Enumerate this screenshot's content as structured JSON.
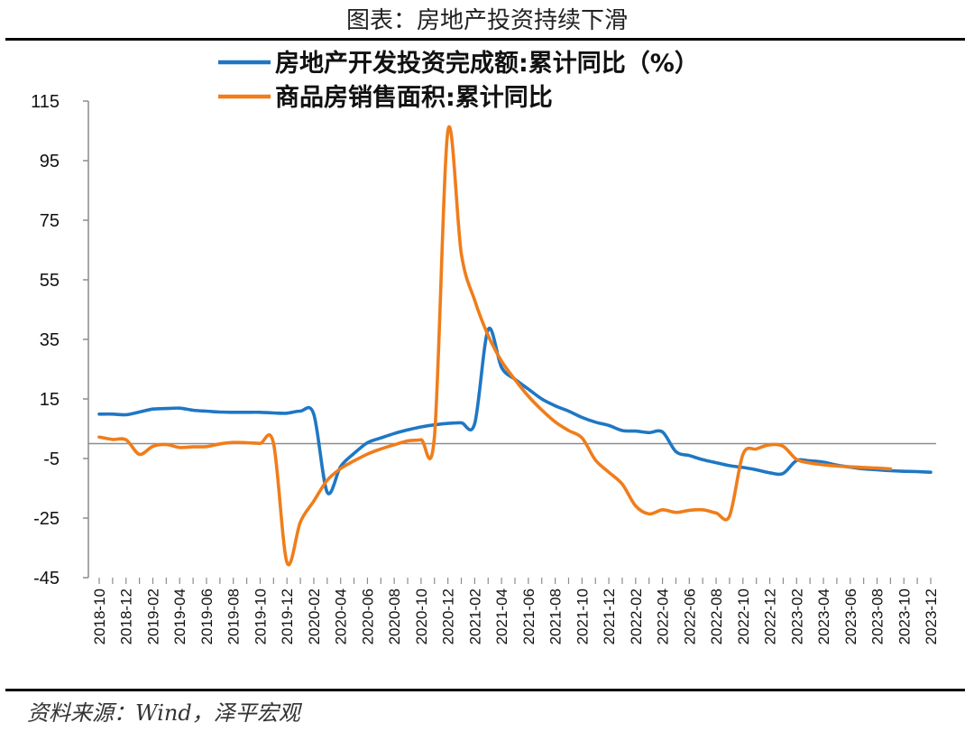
{
  "title": "图表：房地产投资持续下滑",
  "source": "资料来源：Wind，泽平宏观",
  "chart_data": {
    "type": "line",
    "ylim": [
      -45,
      115
    ],
    "yticks": [
      115,
      95,
      75,
      55,
      35,
      15,
      -5,
      -25,
      -45
    ],
    "xtick_labels": [
      "2018-10",
      "2018-12",
      "2019-02",
      "2019-04",
      "2019-06",
      "2019-08",
      "2019-10",
      "2019-12",
      "2020-02",
      "2020-04",
      "2020-06",
      "2020-08",
      "2020-10",
      "2020-12",
      "2021-02",
      "2021-04",
      "2021-06",
      "2021-08",
      "2021-10",
      "2021-12",
      "2022-02",
      "2022-04",
      "2022-06",
      "2022-08",
      "2022-10",
      "2022-12",
      "2023-02",
      "2023-04",
      "2023-06",
      "2023-08",
      "2023-10",
      "2023-12"
    ],
    "series": [
      {
        "name": "房地产开发投资完成额:累计同比（%）",
        "color": "#1f77c4",
        "values": [
          9.9,
          9.9,
          9.7,
          10.6,
          11.6,
          11.8,
          11.9,
          11.2,
          10.9,
          10.6,
          10.5,
          10.5,
          10.5,
          10.3,
          10.2,
          10.9,
          9.9,
          -16.3,
          -7.7,
          -3.3,
          0.3,
          1.9,
          3.4,
          4.6,
          5.6,
          6.3,
          6.8,
          7.0,
          6.8,
          38.3,
          25.6,
          21.6,
          18.3,
          15.0,
          12.7,
          10.9,
          8.8,
          7.2,
          6.1,
          4.4,
          4.2,
          3.7,
          3.9,
          -2.7,
          -4.0,
          -5.4,
          -6.4,
          -7.4,
          -8.0,
          -8.8,
          -9.8,
          -10.0,
          -5.7,
          -5.8,
          -6.2,
          -7.2,
          -7.9,
          -8.5,
          -8.8,
          -9.1,
          -9.3,
          -9.4,
          -9.6
        ]
      },
      {
        "name": "商品房销售面积:累计同比",
        "color": "#f07d1a",
        "values": [
          2.2,
          1.4,
          1.3,
          -3.6,
          -0.9,
          -0.3,
          -1.3,
          -1.1,
          -1.0,
          -0.1,
          0.4,
          0.3,
          0.1,
          0.1,
          -39.9,
          -26.3,
          -19.3,
          -12.3,
          -8.4,
          -5.8,
          -3.5,
          -1.8,
          -0.4,
          0.9,
          1.3,
          2.6,
          104.9,
          63.8,
          48.1,
          36.3,
          27.7,
          21.5,
          15.9,
          11.3,
          7.3,
          4.4,
          1.9,
          -5.5,
          -9.6,
          -13.6,
          -20.9,
          -23.6,
          -22.2,
          -23.1,
          -22.4,
          -22.2,
          -23.3,
          -24.3,
          -3.6,
          -1.8,
          -0.4,
          -0.9,
          -5.3,
          -6.5,
          -7.1,
          -7.5,
          -7.8,
          -8.0,
          -8.2,
          -8.5
        ]
      }
    ],
    "legend_position": "top",
    "grid": false
  }
}
